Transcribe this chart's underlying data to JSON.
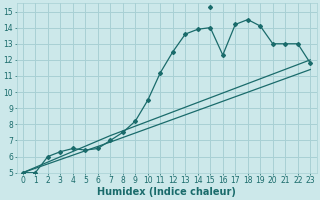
{
  "bg_color": "#cce8ea",
  "grid_color": "#a8d0d4",
  "line_color": "#1a6b6b",
  "xlim": [
    -0.5,
    23.5
  ],
  "ylim": [
    5,
    15.5
  ],
  "xlabel": "Humidex (Indice chaleur)",
  "xticks": [
    0,
    1,
    2,
    3,
    4,
    5,
    6,
    7,
    8,
    9,
    10,
    11,
    12,
    13,
    14,
    15,
    16,
    17,
    18,
    19,
    20,
    21,
    22,
    23
  ],
  "yticks": [
    5,
    6,
    7,
    8,
    9,
    10,
    11,
    12,
    13,
    14,
    15
  ],
  "curve1_x": [
    0,
    1,
    2,
    3,
    4,
    5,
    6,
    7,
    8,
    9,
    10,
    11,
    12,
    13,
    14,
    15,
    16,
    17,
    18,
    19,
    20,
    21,
    22,
    23
  ],
  "curve1_y": [
    5.0,
    5.0,
    6.0,
    6.3,
    6.5,
    6.4,
    6.5,
    7.0,
    7.5,
    8.2,
    9.5,
    11.2,
    12.5,
    13.6,
    13.9,
    14.0,
    12.3,
    14.2,
    14.5,
    14.1,
    13.0,
    13.0,
    13.0,
    11.8
  ],
  "peak_x": [
    15
  ],
  "peak_y": [
    15.3
  ],
  "line2_x": [
    0,
    7,
    23
  ],
  "line2_y": [
    5.0,
    7.3,
    12.0
  ],
  "line3_x": [
    0,
    7,
    23
  ],
  "line3_y": [
    5.0,
    6.9,
    11.4
  ],
  "xlabel_fontsize": 7,
  "tick_fontsize": 5.5
}
